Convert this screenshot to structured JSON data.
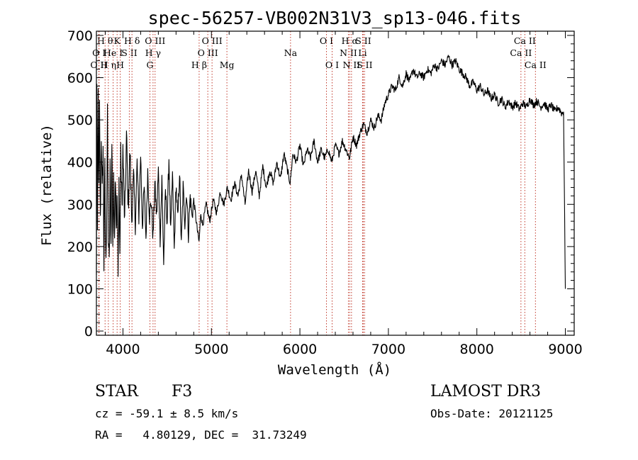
{
  "chart_data": {
    "type": "line",
    "title": "spec-56257-VB002N31V3_sp13-046.fits",
    "xlabel": "Wavelength (Å)",
    "ylabel": "Flux (relative)",
    "xlim": [
      3700,
      9100
    ],
    "ylim": [
      -10,
      710
    ],
    "xticks": [
      4000,
      5000,
      6000,
      7000,
      8000,
      9000
    ],
    "yticks": [
      0,
      100,
      200,
      300,
      400,
      500,
      600,
      700
    ],
    "series": [
      {
        "name": "flux",
        "anchors": [
          [
            3700,
            120
          ],
          [
            3705,
            600
          ],
          [
            3712,
            200
          ],
          [
            3720,
            560
          ],
          [
            3728,
            320
          ],
          [
            3735,
            520
          ],
          [
            3745,
            250
          ],
          [
            3755,
            470
          ],
          [
            3765,
            320
          ],
          [
            3775,
            440
          ],
          [
            3785,
            160
          ],
          [
            3795,
            380
          ],
          [
            3805,
            170
          ],
          [
            3815,
            260
          ],
          [
            3825,
            500
          ],
          [
            3835,
            230
          ],
          [
            3845,
            150
          ],
          [
            3855,
            380
          ],
          [
            3865,
            200
          ],
          [
            3875,
            450
          ],
          [
            3885,
            210
          ],
          [
            3895,
            340
          ],
          [
            3905,
            240
          ],
          [
            3915,
            390
          ],
          [
            3925,
            250
          ],
          [
            3935,
            320
          ],
          [
            3945,
            120
          ],
          [
            3955,
            360
          ],
          [
            3965,
            170
          ],
          [
            3975,
            410
          ],
          [
            3990,
            290
          ],
          [
            4000,
            430
          ],
          [
            4020,
            250
          ],
          [
            4040,
            460
          ],
          [
            4060,
            300
          ],
          [
            4080,
            420
          ],
          [
            4100,
            260
          ],
          [
            4120,
            370
          ],
          [
            4140,
            250
          ],
          [
            4160,
            400
          ],
          [
            4180,
            270
          ],
          [
            4200,
            420
          ],
          [
            4220,
            250
          ],
          [
            4240,
            340
          ],
          [
            4260,
            220
          ],
          [
            4280,
            380
          ],
          [
            4300,
            270
          ],
          [
            4320,
            310
          ],
          [
            4340,
            220
          ],
          [
            4360,
            350
          ],
          [
            4380,
            270
          ],
          [
            4400,
            380
          ],
          [
            4420,
            220
          ],
          [
            4440,
            360
          ],
          [
            4460,
            160
          ],
          [
            4480,
            330
          ],
          [
            4500,
            260
          ],
          [
            4520,
            410
          ],
          [
            4540,
            230
          ],
          [
            4560,
            370
          ],
          [
            4580,
            190
          ],
          [
            4600,
            350
          ],
          [
            4620,
            260
          ],
          [
            4640,
            380
          ],
          [
            4660,
            200
          ],
          [
            4680,
            340
          ],
          [
            4700,
            260
          ],
          [
            4720,
            330
          ],
          [
            4740,
            230
          ],
          [
            4760,
            320
          ],
          [
            4780,
            270
          ],
          [
            4800,
            310
          ],
          [
            4840,
            240
          ],
          [
            4860,
            210
          ],
          [
            4880,
            280
          ],
          [
            4900,
            250
          ],
          [
            4940,
            300
          ],
          [
            4980,
            260
          ],
          [
            5020,
            310
          ],
          [
            5060,
            280
          ],
          [
            5100,
            330
          ],
          [
            5140,
            300
          ],
          [
            5180,
            340
          ],
          [
            5220,
            310
          ],
          [
            5260,
            350
          ],
          [
            5300,
            320
          ],
          [
            5340,
            370
          ],
          [
            5380,
            300
          ],
          [
            5420,
            380
          ],
          [
            5460,
            330
          ],
          [
            5500,
            380
          ],
          [
            5540,
            320
          ],
          [
            5580,
            390
          ],
          [
            5620,
            340
          ],
          [
            5660,
            380
          ],
          [
            5700,
            350
          ],
          [
            5740,
            400
          ],
          [
            5780,
            360
          ],
          [
            5820,
            420
          ],
          [
            5860,
            380
          ],
          [
            5890,
            350
          ],
          [
            5920,
            420
          ],
          [
            5960,
            400
          ],
          [
            6000,
            440
          ],
          [
            6040,
            390
          ],
          [
            6080,
            430
          ],
          [
            6120,
            410
          ],
          [
            6160,
            450
          ],
          [
            6200,
            400
          ],
          [
            6240,
            430
          ],
          [
            6280,
            410
          ],
          [
            6320,
            430
          ],
          [
            6360,
            400
          ],
          [
            6400,
            440
          ],
          [
            6440,
            420
          ],
          [
            6480,
            450
          ],
          [
            6520,
            430
          ],
          [
            6560,
            410
          ],
          [
            6600,
            460
          ],
          [
            6640,
            440
          ],
          [
            6680,
            470
          ],
          [
            6720,
            490
          ],
          [
            6760,
            470
          ],
          [
            6800,
            500
          ],
          [
            6840,
            480
          ],
          [
            6880,
            510
          ],
          [
            6920,
            500
          ],
          [
            6960,
            540
          ],
          [
            7000,
            560
          ],
          [
            7040,
            580
          ],
          [
            7080,
            570
          ],
          [
            7120,
            600
          ],
          [
            7160,
            580
          ],
          [
            7200,
            610
          ],
          [
            7240,
            590
          ],
          [
            7280,
            620
          ],
          [
            7320,
            600
          ],
          [
            7360,
            610
          ],
          [
            7400,
            600
          ],
          [
            7440,
            620
          ],
          [
            7480,
            610
          ],
          [
            7520,
            630
          ],
          [
            7560,
            620
          ],
          [
            7600,
            640
          ],
          [
            7640,
            630
          ],
          [
            7680,
            650
          ],
          [
            7720,
            630
          ],
          [
            7760,
            640
          ],
          [
            7800,
            620
          ],
          [
            7840,
            610
          ],
          [
            7880,
            600
          ],
          [
            7920,
            580
          ],
          [
            7960,
            590
          ],
          [
            8000,
            570
          ],
          [
            8040,
            580
          ],
          [
            8080,
            560
          ],
          [
            8120,
            570
          ],
          [
            8160,
            550
          ],
          [
            8200,
            560
          ],
          [
            8240,
            540
          ],
          [
            8280,
            550
          ],
          [
            8320,
            530
          ],
          [
            8360,
            545
          ],
          [
            8400,
            530
          ],
          [
            8440,
            540
          ],
          [
            8480,
            525
          ],
          [
            8520,
            540
          ],
          [
            8560,
            530
          ],
          [
            8600,
            550
          ],
          [
            8640,
            535
          ],
          [
            8680,
            545
          ],
          [
            8720,
            530
          ],
          [
            8760,
            540
          ],
          [
            8800,
            525
          ],
          [
            8840,
            535
          ],
          [
            8880,
            520
          ],
          [
            8920,
            530
          ],
          [
            8960,
            515
          ],
          [
            8980,
            520
          ],
          [
            9000,
            100
          ]
        ]
      }
    ],
    "line_markers": [
      {
        "label": "O II",
        "wavelength": 3727,
        "row": 3
      },
      {
        "label": "H θ",
        "wavelength": 3798,
        "row": 1
      },
      {
        "label": "O I",
        "wavelength": 3730,
        "row": 2
      },
      {
        "label": "H η",
        "wavelength": 3835,
        "row": 3
      },
      {
        "label": "He I",
        "wavelength": 3889,
        "row": 2
      },
      {
        "label": "K",
        "wavelength": 3934,
        "row": 1
      },
      {
        "label": "H",
        "wavelength": 3969,
        "row": 3
      },
      {
        "label": "S II",
        "wavelength": 4072,
        "row": 2
      },
      {
        "label": "H δ",
        "wavelength": 4102,
        "row": 1
      },
      {
        "label": "G",
        "wavelength": 4305,
        "row": 3
      },
      {
        "label": "O III",
        "wavelength": 4363,
        "row": 1
      },
      {
        "label": "H γ",
        "wavelength": 4340,
        "row": 2
      },
      {
        "label": "H β",
        "wavelength": 4861,
        "row": 3
      },
      {
        "label": "O III",
        "wavelength": 4959,
        "row": 2
      },
      {
        "label": "O III",
        "wavelength": 5007,
        "row": 1
      },
      {
        "label": "Mg",
        "wavelength": 5175,
        "row": 3
      },
      {
        "label": "Na",
        "wavelength": 5894,
        "row": 2
      },
      {
        "label": "O I",
        "wavelength": 6300,
        "row": 1
      },
      {
        "label": "O I",
        "wavelength": 6364,
        "row": 3
      },
      {
        "label": "N II",
        "wavelength": 6548,
        "row": 2
      },
      {
        "label": "H α",
        "wavelength": 6563,
        "row": 1
      },
      {
        "label": "N II",
        "wavelength": 6583,
        "row": 3
      },
      {
        "label": "Li",
        "wavelength": 6708,
        "row": 2
      },
      {
        "label": "S II",
        "wavelength": 6716,
        "row": 1
      },
      {
        "label": "S II",
        "wavelength": 6731,
        "row": 3
      },
      {
        "label": "Ca II",
        "wavelength": 8498,
        "row": 2
      },
      {
        "label": "Ca II",
        "wavelength": 8542,
        "row": 1
      },
      {
        "label": "Ca II",
        "wavelength": 8662,
        "row": 3
      }
    ]
  },
  "info": {
    "class": "STAR",
    "subclass": "F3",
    "survey": "LAMOST DR3",
    "cz": "cz = -59.1 ± 8.5 km/s",
    "obs_date": "Obs-Date: 20121125",
    "coords": "RA =   4.80129, DEC =  31.73249"
  }
}
